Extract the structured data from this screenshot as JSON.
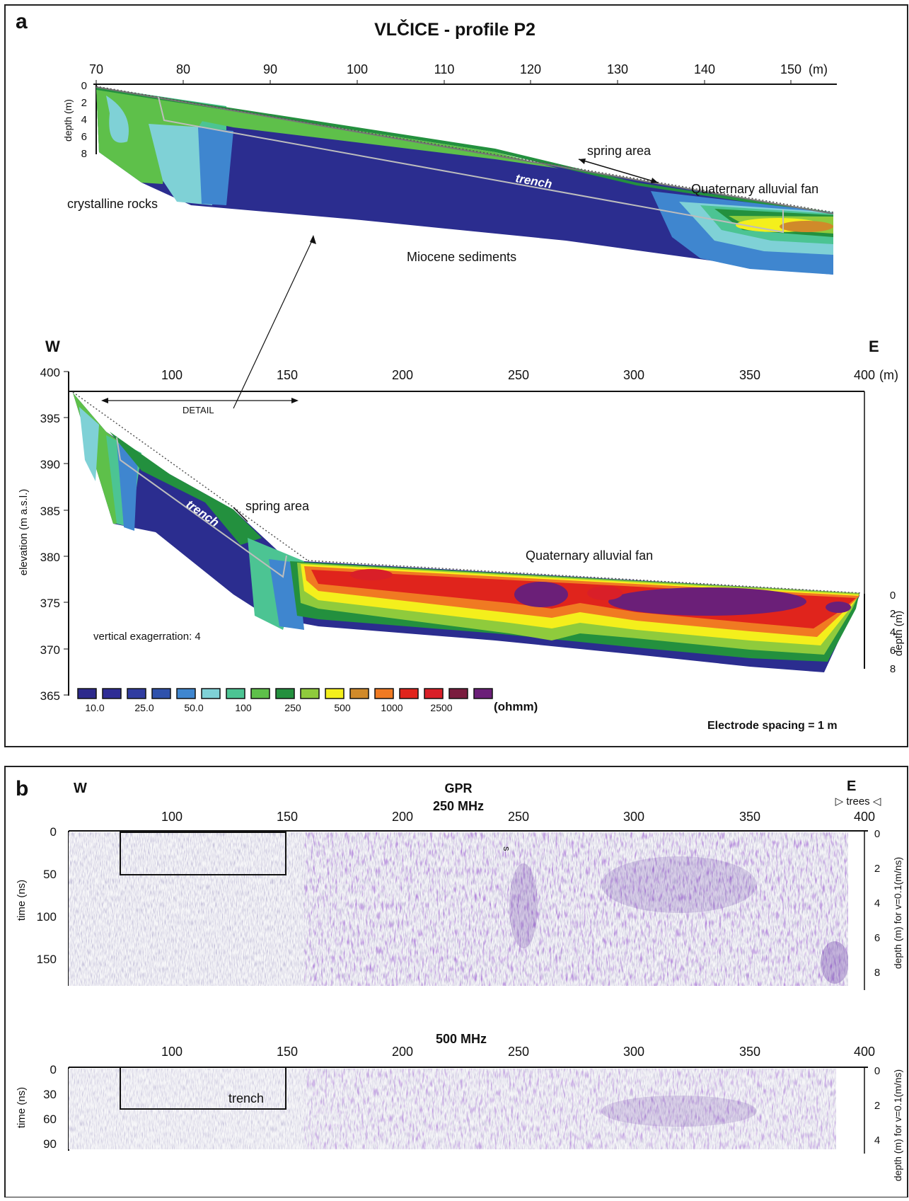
{
  "panel_a": {
    "label": "a",
    "title": "VLČICE - profile P2",
    "detail": {
      "x_ticks": [
        "70",
        "80",
        "90",
        "100",
        "110",
        "120",
        "130",
        "140",
        "150"
      ],
      "x_unit": "(m)",
      "depth_label": "depth (m)",
      "depth_ticks": [
        "0",
        "2",
        "4",
        "6",
        "8"
      ],
      "annotations": {
        "spring": "spring area",
        "trench": "trench",
        "fan": "Quaternary alluvial fan",
        "crystalline": "crystalline rocks",
        "miocene": "Miocene sediments"
      }
    },
    "overview": {
      "west": "W",
      "east": "E",
      "x_ticks": [
        "100",
        "150",
        "200",
        "250",
        "300",
        "350",
        "400"
      ],
      "x_unit": "(m)",
      "y_label": "elevation (m a.s.l.)",
      "y_ticks": [
        "400",
        "395",
        "390",
        "385",
        "380",
        "375",
        "370",
        "365"
      ],
      "depth_label": "depth (m)",
      "depth_ticks": [
        "0",
        "2",
        "4",
        "6",
        "8"
      ],
      "detail_label": "DETAIL",
      "annotations": {
        "spring": "spring area",
        "trench": "trench",
        "fan": "Quaternary alluvial fan",
        "vert": "vertical exagerration: 4"
      }
    },
    "legend": {
      "colors": [
        "#2d2a8c",
        "#2e2c95",
        "#303ca0",
        "#2f52ac",
        "#3f86cf",
        "#7fd1d6",
        "#4cc493",
        "#5ec04a",
        "#23903e",
        "#8fcb3c",
        "#f4ef1c",
        "#d08a2a",
        "#f07a22",
        "#e0241c",
        "#d91f28",
        "#7a1c3e",
        "#6b1f78"
      ],
      "labels": [
        "10.0",
        "25.0",
        "50.0",
        "100",
        "250",
        "500",
        "1000",
        "2500"
      ],
      "unit": "(ohmm)"
    },
    "electrode": "Electrode spacing = 1 m"
  },
  "panel_b": {
    "label": "b",
    "west": "W",
    "east": "E",
    "trees": "▷ trees ◁",
    "gpr": "GPR",
    "freq_250": "250 MHz",
    "freq_500": "500 MHz",
    "x_ticks": [
      "100",
      "150",
      "200",
      "250",
      "300",
      "350",
      "400"
    ],
    "time_label": "time (ns)",
    "time_ticks_250": [
      "0",
      "50",
      "100",
      "150"
    ],
    "time_ticks_500": [
      "0",
      "30",
      "60",
      "90"
    ],
    "depth_label": "depth (m) for v=0.1(m/ns)",
    "depth_ticks_250": [
      "0",
      "2",
      "4",
      "6",
      "8"
    ],
    "depth_ticks_500": [
      "0",
      "2",
      "4"
    ],
    "s_marker": "s",
    "trench": "trench"
  }
}
